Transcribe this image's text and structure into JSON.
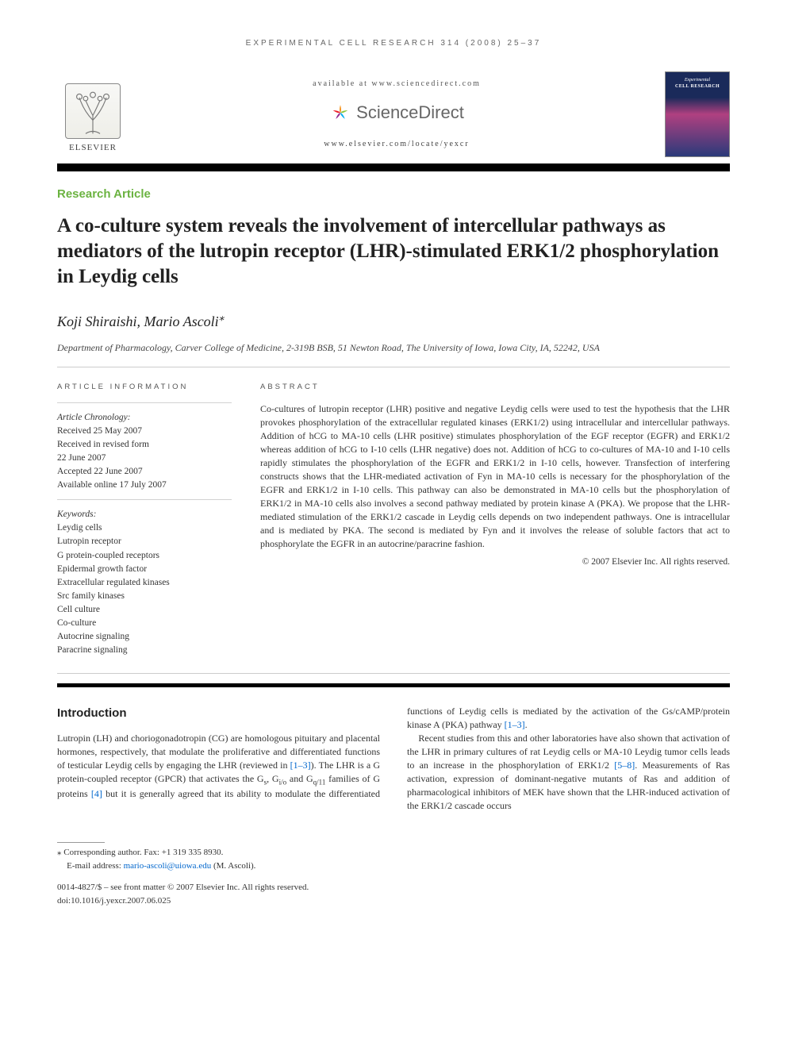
{
  "header": {
    "running_head": "EXPERIMENTAL CELL RESEARCH 314 (2008) 25–37",
    "available_at": "available at www.sciencedirect.com",
    "sciencedirect_label": "ScienceDirect",
    "journal_url": "www.elsevier.com/locate/yexcr",
    "elsevier_label": "ELSEVIER",
    "cover_line1": "Experimental",
    "cover_line2": "CELL RESEARCH"
  },
  "article": {
    "type": "Research Article",
    "title": "A co-culture system reveals the involvement of intercellular pathways as mediators of the lutropin receptor (LHR)-stimulated ERK1/2 phosphorylation in Leydig cells",
    "authors": "Koji Shiraishi, Mario Ascoli",
    "author_note": "⁎",
    "affiliation": "Department of Pharmacology, Carver College of Medicine, 2-319B BSB, 51 Newton Road, The University of Iowa, Iowa City, IA, 52242, USA"
  },
  "info": {
    "heading": "ARTICLE INFORMATION",
    "chronology_label": "Article Chronology:",
    "received": "Received 25 May 2007",
    "revised_l1": "Received in revised form",
    "revised_l2": "22 June 2007",
    "accepted": "Accepted 22 June 2007",
    "online": "Available online 17 July 2007",
    "keywords_label": "Keywords:",
    "keywords": [
      "Leydig cells",
      "Lutropin receptor",
      "G protein-coupled receptors",
      "Epidermal growth factor",
      "Extracellular regulated kinases",
      "Src family kinases",
      "Cell culture",
      "Co-culture",
      "Autocrine signaling",
      "Paracrine signaling"
    ]
  },
  "abstract": {
    "heading": "ABSTRACT",
    "text": "Co-cultures of lutropin receptor (LHR) positive and negative Leydig cells were used to test the hypothesis that the LHR provokes phosphorylation of the extracellular regulated kinases (ERK1/2) using intracellular and intercellular pathways. Addition of hCG to MA-10 cells (LHR positive) stimulates phosphorylation of the EGF receptor (EGFR) and ERK1/2 whereas addition of hCG to I-10 cells (LHR negative) does not. Addition of hCG to co-cultures of MA-10 and I-10 cells rapidly stimulates the phosphorylation of the EGFR and ERK1/2 in I-10 cells, however. Transfection of interfering constructs shows that the LHR-mediated activation of Fyn in MA-10 cells is necessary for the phosphorylation of the EGFR and ERK1/2 in I-10 cells. This pathway can also be demonstrated in MA-10 cells but the phosphorylation of ERK1/2 in MA-10 cells also involves a second pathway mediated by protein kinase A (PKA). We propose that the LHR-mediated stimulation of the ERK1/2 cascade in Leydig cells depends on two independent pathways. One is intracellular and is mediated by PKA. The second is mediated by Fyn and it involves the release of soluble factors that act to phosphorylate the EGFR in an autocrine/paracrine fashion.",
    "copyright": "© 2007 Elsevier Inc. All rights reserved."
  },
  "body": {
    "intro_heading": "Introduction",
    "col_text_parts": {
      "p1a": "Lutropin (LH) and choriogonadotropin (CG) are homologous pituitary and placental hormones, respectively, that modulate the proliferative and differentiated functions of testicular Leydig cells by engaging the LHR (reviewed in ",
      "ref1": "[1–3]",
      "p1b": "). The LHR is a G protein-coupled receptor (GPCR) that activates the G",
      "sub_s": "s",
      "p1c": ", G",
      "sub_io": "i/o",
      "p1d": " and G",
      "sub_q11": "q/11",
      "p1e": " families of G proteins ",
      "ref4": "[4]",
      "p1f": " but it is generally agreed that its ability to modulate the differentiated functions of Leydig cells is mediated by the activation of the Gs/cAMP/protein kinase A (PKA) pathway ",
      "ref1b": "[1–3]",
      "p1g": ".",
      "p2a": "Recent studies from this and other laboratories have also shown that activation of the LHR in primary cultures of rat Leydig cells or MA-10 Leydig tumor cells leads to an increase in the phosphorylation of ERK1/2 ",
      "ref58": "[5–8]",
      "p2b": ". Measurements of Ras activation, expression of dominant-negative mutants of Ras and addition of pharmacological inhibitors of MEK have shown that the LHR-induced activation of the ERK1/2 cascade occurs"
    }
  },
  "footer": {
    "corresponding_label": "⁎ Corresponding author.",
    "fax": " Fax: +1 319 335 8930.",
    "email_label": "E-mail address: ",
    "email": "mario-ascoli@uiowa.edu",
    "email_suffix": " (M. Ascoli).",
    "front_matter": "0014-4827/$ – see front matter © 2007 Elsevier Inc. All rights reserved.",
    "doi": "doi:10.1016/j.yexcr.2007.06.025"
  },
  "colors": {
    "accent_green": "#6bb341",
    "link_blue": "#0066cc",
    "sd_orange": "#f7941e",
    "sd_green": "#8cc63f",
    "sd_blue": "#00aeef",
    "sd_purple": "#92278f",
    "sd_red": "#ed1c24"
  }
}
